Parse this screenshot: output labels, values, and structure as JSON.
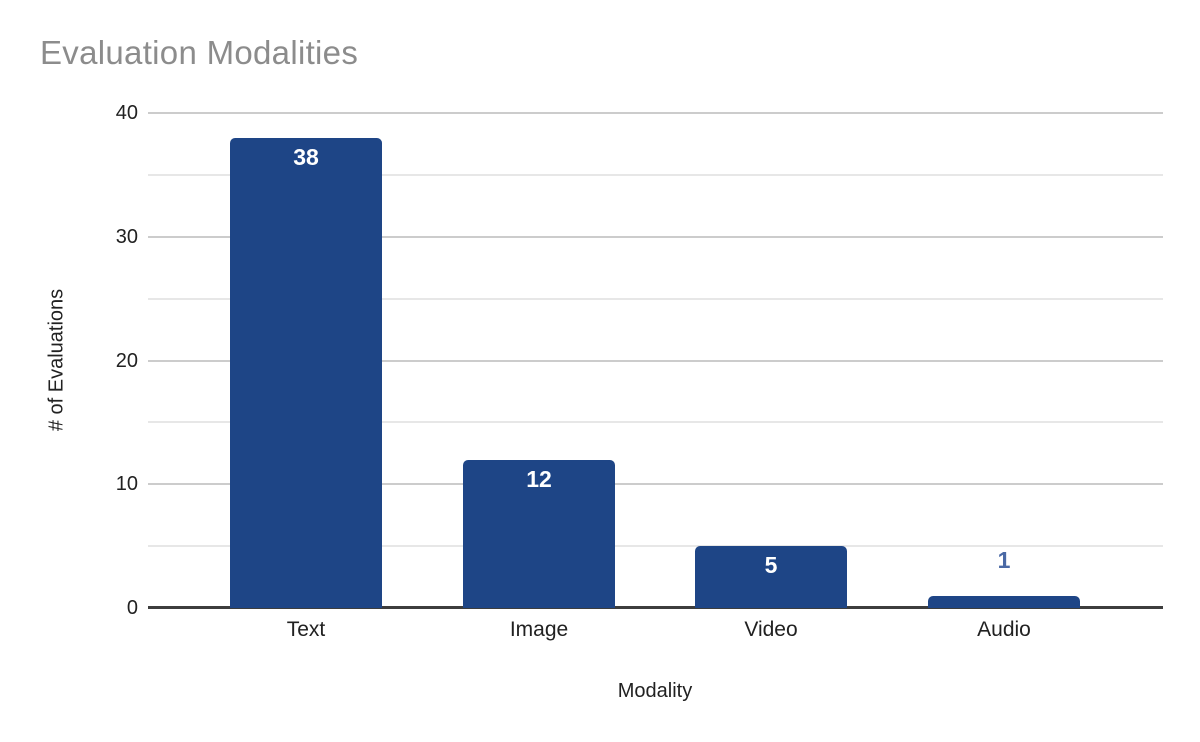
{
  "chart_data": {
    "type": "bar",
    "title": "Evaluation Modalities",
    "xlabel": "Modality",
    "ylabel": "# of Evaluations",
    "categories": [
      "Text",
      "Image",
      "Video",
      "Audio"
    ],
    "values": [
      38,
      12,
      5,
      1
    ],
    "data_labels": [
      "38",
      "12",
      "5",
      "1"
    ],
    "ylim": [
      0,
      40
    ],
    "yticks": [
      0,
      10,
      20,
      30,
      40
    ],
    "minor_yticks": [
      5,
      15,
      25,
      35
    ],
    "grid": true,
    "legend_position": "none",
    "colors": {
      "bar": "#1e4586",
      "data_label_inside": "#ffffff",
      "data_label_outside": "#4a69a5",
      "title_text": "#8c8c8c",
      "axis_text": "#212121",
      "major_gridline": "#cccccc",
      "minor_gridline": "#e7e7e7",
      "baseline": "#3d3d3d"
    }
  }
}
